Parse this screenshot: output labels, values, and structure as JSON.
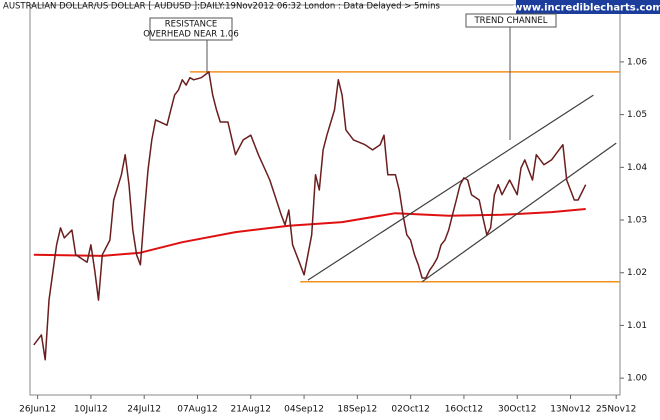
{
  "chart_data": {
    "type": "line",
    "title": "AUSTRALIAN DOLLAR/US DOLLAR [ AUDUSD ]:DAILY:19Nov2012 06:32 London : Data Delayed > 5mins",
    "source": "www.incrediblecharts.com",
    "annotations": [
      "RESISTANCE",
      "OVERHEAD NEAR 1.06",
      "TREND CHANNEL"
    ],
    "xlim": [
      "2012-06-24",
      "2012-11-26"
    ],
    "ylim": [
      0.9968,
      1.0708
    ],
    "xticks": [
      {
        "value": "2012-06-26",
        "label": "26Jun12"
      },
      {
        "value": "2012-07-10",
        "label": "10Jul12"
      },
      {
        "value": "2012-07-24",
        "label": "24Jul12"
      },
      {
        "value": "2012-08-07",
        "label": "07Aug12"
      },
      {
        "value": "2012-08-21",
        "label": "21Aug12"
      },
      {
        "value": "2012-09-04",
        "label": "04Sep12"
      },
      {
        "value": "2012-09-18",
        "label": "18Sep12"
      },
      {
        "value": "2012-10-02",
        "label": "02Oct12"
      },
      {
        "value": "2012-10-16",
        "label": "16Oct12"
      },
      {
        "value": "2012-10-30",
        "label": "30Oct12"
      },
      {
        "value": "2012-11-13",
        "label": "13Nov12"
      },
      {
        "value": "2012-11-25",
        "label": "25Nov12"
      }
    ],
    "yticks": [
      {
        "value": 1,
        "label": "1.00"
      },
      1.01,
      1.02,
      1.03,
      1.04,
      1.05,
      1.06
    ],
    "grid": false,
    "series": [
      {
        "color": "#e01010",
        "width": 2,
        "x": [
          "2012-06-25",
          "2012-07-13",
          "2012-07-23",
          "2012-08-03",
          "2012-08-17",
          "2012-08-31",
          "2012-09-14",
          "2012-09-28",
          "2012-10-12",
          "2012-10-26",
          "2012-11-08",
          "2012-11-17"
        ],
        "values": [
          1.0234,
          1.0232,
          1.0238,
          1.0258,
          1.0277,
          1.0289,
          1.0296,
          1.0313,
          1.0308,
          1.031,
          1.0315,
          1.0321
        ]
      },
      {
        "color": "#f0901e",
        "width": 1.5,
        "x": [
          "2012-08-05",
          "2012-11-26"
        ],
        "values": [
          1.0581,
          1.0581
        ]
      },
      {
        "color": "#f0901e",
        "width": 1.5,
        "x": [
          "2012-09-03",
          "2012-11-26"
        ],
        "values": [
          1.0183,
          1.0183
        ]
      },
      {
        "color": "#404040",
        "width": 1.2,
        "x": [
          "2012-09-05",
          "2012-11-19"
        ],
        "values": [
          1.0186,
          1.0537
        ]
      },
      {
        "color": "#404040",
        "width": 1.2,
        "x": [
          "2012-10-05",
          "2012-11-25"
        ],
        "values": [
          1.0183,
          1.0446
        ]
      },
      {
        "color": "#6b1e1e",
        "width": 1.5,
        "x": [
          "2012-06-25",
          "2012-06-27",
          "2012-06-28",
          "2012-06-29",
          "2012-07-01",
          "2012-07-02",
          "2012-07-03",
          "2012-07-05",
          "2012-07-06",
          "2012-07-09",
          "2012-07-10",
          "2012-07-11",
          "2012-07-12",
          "2012-07-13",
          "2012-07-15",
          "2012-07-16",
          "2012-07-18",
          "2012-07-19",
          "2012-07-20",
          "2012-07-21",
          "2012-07-22",
          "2012-07-23",
          "2012-07-24",
          "2012-07-25",
          "2012-07-26",
          "2012-07-27",
          "2012-07-30",
          "2012-07-31",
          "2012-08-01",
          "2012-08-02",
          "2012-08-03",
          "2012-08-04",
          "2012-08-05",
          "2012-08-06",
          "2012-08-08",
          "2012-08-10",
          "2012-08-11",
          "2012-08-12",
          "2012-08-13",
          "2012-08-15",
          "2012-08-17",
          "2012-08-19",
          "2012-08-21",
          "2012-08-23",
          "2012-08-26",
          "2012-08-29",
          "2012-08-30",
          "2012-08-31",
          "2012-09-01",
          "2012-09-03",
          "2012-09-04",
          "2012-09-05",
          "2012-09-06",
          "2012-09-07",
          "2012-09-08",
          "2012-09-09",
          "2012-09-10",
          "2012-09-12",
          "2012-09-13",
          "2012-09-14",
          "2012-09-15",
          "2012-09-17",
          "2012-09-20",
          "2012-09-22",
          "2012-09-24",
          "2012-09-25",
          "2012-09-26",
          "2012-09-28",
          "2012-09-29",
          "2012-09-30",
          "2012-10-01",
          "2012-10-02",
          "2012-10-03",
          "2012-10-04",
          "2012-10-05",
          "2012-10-06",
          "2012-10-07",
          "2012-10-08",
          "2012-10-09",
          "2012-10-10",
          "2012-10-11",
          "2012-10-12",
          "2012-10-13",
          "2012-10-14",
          "2012-10-15",
          "2012-10-16",
          "2012-10-17",
          "2012-10-18",
          "2012-10-20",
          "2012-10-21",
          "2012-10-22",
          "2012-10-23",
          "2012-10-24",
          "2012-10-25",
          "2012-10-26",
          "2012-10-28",
          "2012-10-30",
          "2012-10-31",
          "2012-11-01",
          "2012-11-02",
          "2012-11-03",
          "2012-11-04",
          "2012-11-06",
          "2012-11-08",
          "2012-11-11",
          "2012-11-12",
          "2012-11-14",
          "2012-11-15",
          "2012-11-17"
        ],
        "values": [
          1.0063,
          1.0082,
          1.0035,
          1.0148,
          1.0253,
          1.0285,
          1.0266,
          1.0281,
          1.0234,
          1.022,
          1.0253,
          1.0205,
          1.0148,
          1.0234,
          1.0262,
          1.0338,
          1.0386,
          1.0424,
          1.0367,
          1.0281,
          1.0234,
          1.0215,
          1.031,
          1.0395,
          1.0452,
          1.049,
          1.048,
          1.0509,
          1.0537,
          1.0547,
          1.0566,
          1.0556,
          1.057,
          1.0566,
          1.057,
          1.0581,
          1.0537,
          1.0509,
          1.0486,
          1.0486,
          1.0424,
          1.0452,
          1.0461,
          1.0424,
          1.0376,
          1.031,
          1.0291,
          1.0319,
          1.0253,
          1.0215,
          1.0196,
          1.0234,
          1.0272,
          1.0386,
          1.0357,
          1.0433,
          1.0461,
          1.0509,
          1.0566,
          1.0537,
          1.0471,
          1.0452,
          1.0443,
          1.0433,
          1.0443,
          1.0461,
          1.0386,
          1.0386,
          1.0357,
          1.031,
          1.0272,
          1.0262,
          1.0234,
          1.0215,
          1.019,
          1.019,
          1.0205,
          1.0215,
          1.0228,
          1.0253,
          1.0262,
          1.0281,
          1.031,
          1.0338,
          1.0367,
          1.038,
          1.0376,
          1.0348,
          1.0338,
          1.0304,
          1.0272,
          1.0285,
          1.0348,
          1.0367,
          1.0348,
          1.0376,
          1.0348,
          1.0399,
          1.0414,
          1.0395,
          1.0376,
          1.0424,
          1.0405,
          1.0414,
          1.0443,
          1.0376,
          1.0338,
          1.0338,
          1.0367
        ]
      }
    ]
  }
}
